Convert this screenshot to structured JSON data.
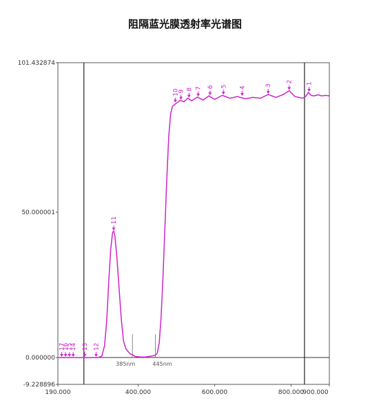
{
  "chart_data": {
    "type": "line",
    "title": "阻隔蓝光膜透射率光谱图",
    "xlabel": "",
    "ylabel": "",
    "xlim": [
      190,
      900
    ],
    "ylim": [
      -9.228896,
      101.432874
    ],
    "x_ticks": [
      "190.000",
      "400.000",
      "600.000",
      "800.000",
      "900.000"
    ],
    "x_tick_values": [
      190,
      400,
      600,
      800,
      900
    ],
    "y_ticks": [
      "101.432874",
      "50.000001",
      "0.000000",
      "-9.228896"
    ],
    "y_tick_values": [
      101.432874,
      50.000001,
      0,
      -9.228896
    ],
    "cursor_lines_x": [
      258,
      835
    ],
    "markers": [
      {
        "label": "385nm",
        "x": 385
      },
      {
        "label": "445nm",
        "x": 445
      }
    ],
    "line_color": "#cc22cc",
    "series": [
      {
        "values": [
          [
            190,
            0
          ],
          [
            295,
            0
          ],
          [
            305,
            0.5
          ],
          [
            312,
            4
          ],
          [
            318,
            13
          ],
          [
            323,
            26
          ],
          [
            328,
            37
          ],
          [
            333,
            43
          ],
          [
            336,
            43.5
          ],
          [
            339,
            42
          ],
          [
            344,
            35
          ],
          [
            350,
            24
          ],
          [
            356,
            13
          ],
          [
            362,
            5.5
          ],
          [
            368,
            3
          ],
          [
            374,
            2
          ],
          [
            380,
            1.2
          ],
          [
            385,
            1.0
          ],
          [
            392,
            0.4
          ],
          [
            405,
            0.2
          ],
          [
            420,
            0.2
          ],
          [
            435,
            0.5
          ],
          [
            445,
            0.8
          ],
          [
            450,
            1.5
          ],
          [
            455,
            5
          ],
          [
            460,
            14
          ],
          [
            465,
            28
          ],
          [
            470,
            45
          ],
          [
            475,
            62
          ],
          [
            480,
            76
          ],
          [
            485,
            84
          ],
          [
            490,
            86.5
          ],
          [
            500,
            87.5
          ],
          [
            510,
            88.5
          ],
          [
            520,
            88
          ],
          [
            530,
            89.2
          ],
          [
            540,
            88.3
          ],
          [
            555,
            89.6
          ],
          [
            570,
            88.6
          ],
          [
            585,
            90
          ],
          [
            600,
            88.8
          ],
          [
            620,
            90.2
          ],
          [
            640,
            89.2
          ],
          [
            660,
            89.8
          ],
          [
            680,
            89
          ],
          [
            700,
            89.5
          ],
          [
            720,
            89.2
          ],
          [
            740,
            90.5
          ],
          [
            760,
            89.5
          ],
          [
            780,
            90.5
          ],
          [
            795,
            91.8
          ],
          [
            810,
            89.8
          ],
          [
            830,
            89.2
          ],
          [
            838,
            89.8
          ],
          [
            845,
            91.2
          ],
          [
            852,
            90.2
          ],
          [
            860,
            90
          ],
          [
            870,
            90.4
          ],
          [
            880,
            90
          ],
          [
            890,
            90.2
          ],
          [
            900,
            90
          ]
        ]
      }
    ],
    "peaks": [
      {
        "label": "1",
        "x": 847,
        "y": 91.2
      },
      {
        "label": "2",
        "x": 795,
        "y": 91.8
      },
      {
        "label": "3",
        "x": 740,
        "y": 90.5
      },
      {
        "label": "4",
        "x": 672,
        "y": 89.8
      },
      {
        "label": "5",
        "x": 623,
        "y": 90.2
      },
      {
        "label": "6",
        "x": 588,
        "y": 90.0
      },
      {
        "label": "7",
        "x": 557,
        "y": 89.6
      },
      {
        "label": "8",
        "x": 533,
        "y": 89.2
      },
      {
        "label": "9",
        "x": 512,
        "y": 88.5
      },
      {
        "label": "10",
        "x": 497,
        "y": 87.5
      },
      {
        "label": "11",
        "x": 336,
        "y": 43.5
      },
      {
        "label": "12",
        "x": 290,
        "y": 0
      },
      {
        "label": "13",
        "x": 260,
        "y": 0
      },
      {
        "label": "14",
        "x": 230,
        "y": 0
      },
      {
        "label": "15",
        "x": 220,
        "y": 0
      },
      {
        "label": "16",
        "x": 210,
        "y": 0
      },
      {
        "label": "17",
        "x": 200,
        "y": 0
      }
    ]
  }
}
